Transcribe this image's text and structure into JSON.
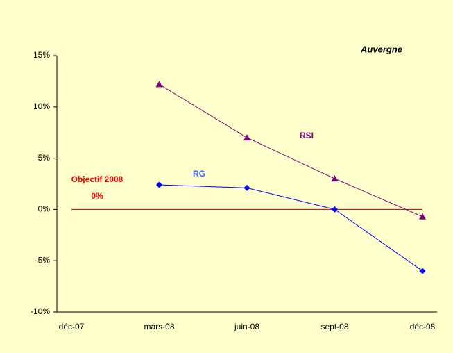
{
  "chart_data": {
    "type": "line",
    "title": "Auvergne",
    "categories": [
      "déc-07",
      "mars-08",
      "juin-08",
      "sept-08",
      "déc-08"
    ],
    "series": [
      {
        "name": "RG",
        "color": "#0000ff",
        "label_color": "#3366ff",
        "marker": "diamond",
        "values": [
          null,
          2.4,
          2.1,
          0,
          -6.0
        ]
      },
      {
        "name": "RSI",
        "color": "#800080",
        "label_color": "#800080",
        "marker": "triangle",
        "values": [
          null,
          12.2,
          7.0,
          3.0,
          -0.7
        ]
      }
    ],
    "reference": {
      "text": "Objectif 2008",
      "value": 0,
      "label": "0%",
      "color": "#c00000",
      "text_color": "#ff0000"
    },
    "ylim": [
      -10,
      15
    ],
    "yticks": [
      {
        "value": -10,
        "label": "-10%"
      },
      {
        "value": -5,
        "label": "-5%"
      },
      {
        "value": 0,
        "label": "0%"
      },
      {
        "value": 5,
        "label": "5%"
      },
      {
        "value": 10,
        "label": "10%"
      },
      {
        "value": 15,
        "label": "15%"
      }
    ],
    "grid": false
  }
}
